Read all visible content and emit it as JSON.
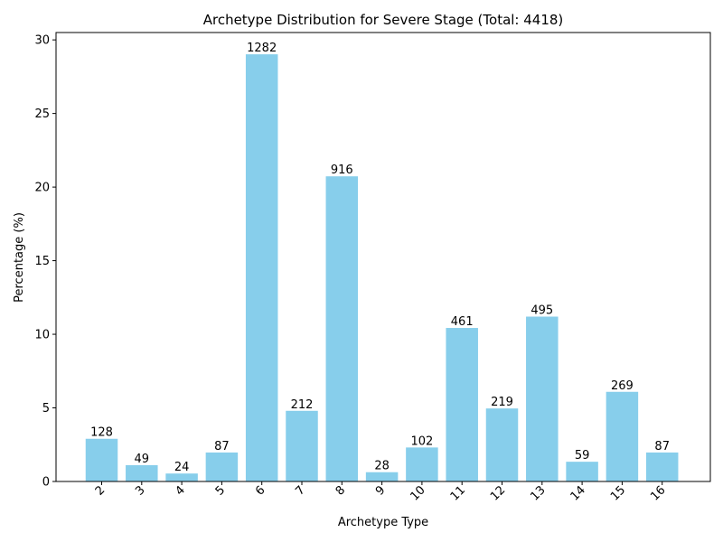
{
  "chart_data": {
    "type": "bar",
    "title": "Archetype Distribution for Severe Stage (Total: 4418)",
    "xlabel": "Archetype Type",
    "ylabel": "Percentage (%)",
    "categories": [
      "2",
      "3",
      "4",
      "5",
      "6",
      "7",
      "8",
      "9",
      "10",
      "11",
      "12",
      "13",
      "14",
      "15",
      "16"
    ],
    "counts": [
      128,
      49,
      24,
      87,
      1282,
      212,
      916,
      28,
      102,
      461,
      219,
      495,
      59,
      269,
      87
    ],
    "values": [
      2.9,
      1.11,
      0.54,
      1.97,
      29.02,
      4.8,
      20.73,
      0.63,
      2.31,
      10.43,
      4.96,
      11.2,
      1.34,
      6.09,
      1.97
    ],
    "data_labels": [
      "128",
      "49",
      "24",
      "87",
      "1282",
      "212",
      "916",
      "28",
      "102",
      "461",
      "219",
      "495",
      "59",
      "269",
      "87"
    ],
    "ylim": [
      0,
      30.5
    ],
    "yticks": [
      0,
      5,
      10,
      15,
      20,
      25,
      30
    ],
    "bar_color": "#87ceeb",
    "grid": false,
    "legend": "none"
  }
}
